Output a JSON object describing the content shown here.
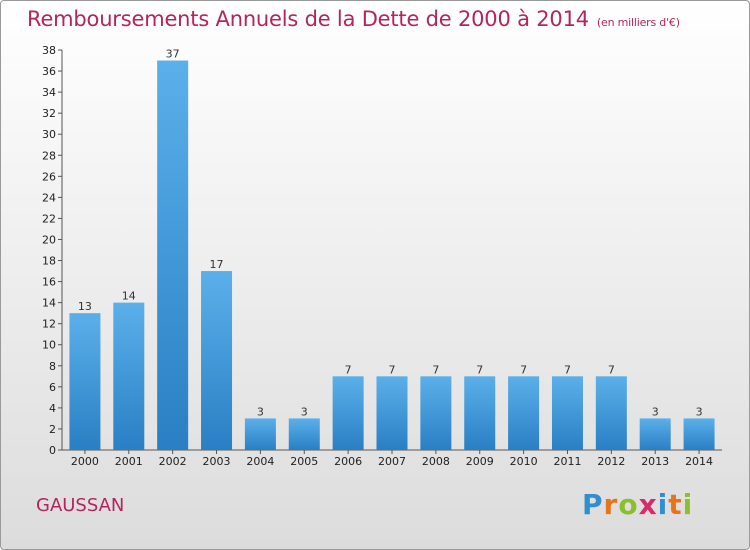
{
  "header": {
    "title": "Remboursements Annuels de la Dette de 2000 à 2014",
    "subtitle": "(en milliers d'€)"
  },
  "footer": {
    "place": "GAUSSAN",
    "brand": "Proxiti",
    "brand_letters": [
      "P",
      "r",
      "o",
      "x",
      "i",
      "t",
      "i"
    ],
    "brand_colors": [
      "#2f8fd0",
      "#e8731d",
      "#8bbf2c",
      "#d92a6a",
      "#2f8fd0",
      "#e8731d",
      "#8bbf2c"
    ]
  },
  "colors": {
    "bar": "#3d98dd",
    "title": "#b5245e"
  },
  "chart_data": {
    "type": "bar",
    "categories": [
      "2000",
      "2001",
      "2002",
      "2003",
      "2004",
      "2005",
      "2006",
      "2007",
      "2008",
      "2009",
      "2010",
      "2011",
      "2012",
      "2013",
      "2014"
    ],
    "values": [
      13,
      14,
      37,
      17,
      3,
      3,
      7,
      7,
      7,
      7,
      7,
      7,
      7,
      3,
      3
    ],
    "data_labels": [
      "13",
      "14",
      "37",
      "17",
      "3",
      "3",
      "7",
      "7",
      "7",
      "7",
      "7",
      "7",
      "7",
      "3",
      "3"
    ],
    "ylim": [
      0,
      38
    ],
    "yticks": [
      0,
      2,
      4,
      6,
      8,
      10,
      12,
      14,
      16,
      18,
      20,
      22,
      24,
      26,
      28,
      30,
      32,
      34,
      36,
      38
    ],
    "grid": false,
    "title": "Remboursements Annuels de la Dette de 2000 à 2014",
    "subtitle": "(en milliers d'€)"
  }
}
